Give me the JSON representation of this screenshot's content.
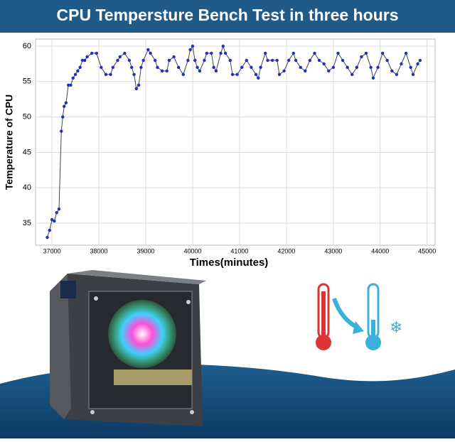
{
  "chart_data": {
    "type": "line",
    "title": "CPU Tempersture Bench Test in three hours",
    "x_label": "Times(minutes)",
    "y_label": "Temperature of CPU",
    "x": [
      36900,
      36950,
      37000,
      37050,
      37100,
      37150,
      37200,
      37230,
      37260,
      37300,
      37350,
      37400,
      37450,
      37500,
      37550,
      37600,
      37650,
      37700,
      37750,
      37850,
      37950,
      38050,
      38150,
      38250,
      38300,
      38400,
      38450,
      38550,
      38650,
      38700,
      38750,
      38800,
      38850,
      38900,
      38950,
      39050,
      39100,
      39200,
      39250,
      39350,
      39450,
      39500,
      39600,
      39700,
      39800,
      39900,
      39950,
      40000,
      40050,
      40100,
      40150,
      40250,
      40300,
      40400,
      40450,
      40500,
      40600,
      40650,
      40700,
      40800,
      40850,
      40950,
      41050,
      41150,
      41250,
      41350,
      41400,
      41450,
      41550,
      41600,
      41700,
      41800,
      41850,
      41950,
      42050,
      42150,
      42200,
      42300,
      42400,
      42500,
      42600,
      42700,
      42800,
      42900,
      43000,
      43100,
      43200,
      43300,
      43400,
      43500,
      43600,
      43700,
      43800,
      43850,
      43950,
      44050,
      44150,
      44250,
      44350,
      44450,
      44550,
      44650,
      44700,
      44800,
      44850
    ],
    "series": [
      {
        "name": "CPU",
        "color": "#1f2fbf",
        "values": [
          33,
          34,
          35.5,
          35.3,
          36.5,
          37,
          48,
          50,
          51.5,
          52,
          54.5,
          54.5,
          55.5,
          56,
          56.5,
          57,
          58,
          58,
          58.5,
          59,
          59,
          57,
          56,
          56,
          57,
          58,
          58.5,
          59,
          58,
          57,
          56,
          54,
          54.5,
          57,
          58,
          59.5,
          59,
          58,
          57,
          56.5,
          56.5,
          58,
          58.5,
          57,
          56,
          58,
          59.5,
          60,
          58,
          57,
          56.5,
          58,
          59,
          59,
          57,
          56.5,
          59,
          60,
          59,
          58,
          56,
          56,
          57,
          58,
          57,
          56,
          55.5,
          57,
          59,
          58,
          58,
          58,
          56,
          56.5,
          58,
          59,
          58,
          57,
          56.5,
          58,
          59,
          58,
          57.5,
          56.5,
          57,
          59,
          58,
          57,
          56,
          57,
          58.5,
          59,
          57,
          55.5,
          57,
          59,
          58,
          56.5,
          56,
          57.5,
          59,
          57,
          56,
          57.5,
          58
        ]
      }
    ],
    "xlim": [
      36650,
      45170
    ],
    "ylim": [
      31.9,
      61
    ],
    "xticks": [
      37000,
      38000,
      39000,
      40000,
      41000,
      42000,
      43000,
      44000,
      45000
    ],
    "yticks": [
      35,
      40,
      45,
      50,
      55,
      60
    ],
    "grid": true
  }
}
